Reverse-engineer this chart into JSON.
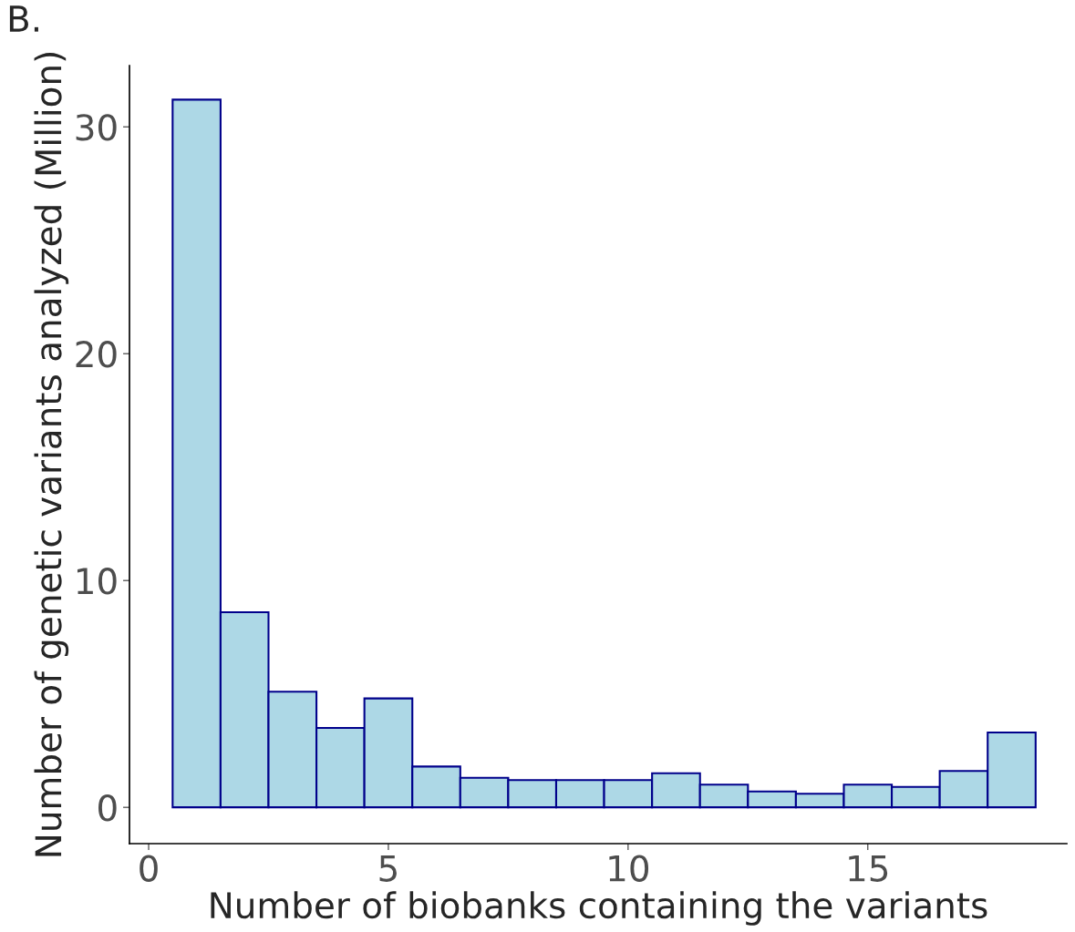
{
  "chart_data": {
    "type": "histogram",
    "title": "B.",
    "xlabel": "Number of biobanks containing the variants",
    "ylabel": "Number of genetic variants analyzed (Million)",
    "bins": [
      0.5,
      1.5,
      2.5,
      3.5,
      4.5,
      5.5,
      6.5,
      7.5,
      8.5,
      9.5,
      10.5,
      11.5,
      12.5,
      13.5,
      14.5,
      15.5,
      16.5,
      17.5,
      18.5
    ],
    "values": [
      31.2,
      8.6,
      5.1,
      3.5,
      4.8,
      1.8,
      1.3,
      1.2,
      1.2,
      1.2,
      1.5,
      1.0,
      0.7,
      0.6,
      1.0,
      0.9,
      1.6,
      3.3
    ],
    "color": "#add8e6",
    "xlim": [
      -0.4,
      19.15
    ],
    "ylim": [
      -1.6,
      32.7
    ],
    "xticks": [
      0,
      5,
      10,
      15
    ],
    "yticks": [
      0,
      10,
      20,
      30
    ],
    "grid": false
  }
}
